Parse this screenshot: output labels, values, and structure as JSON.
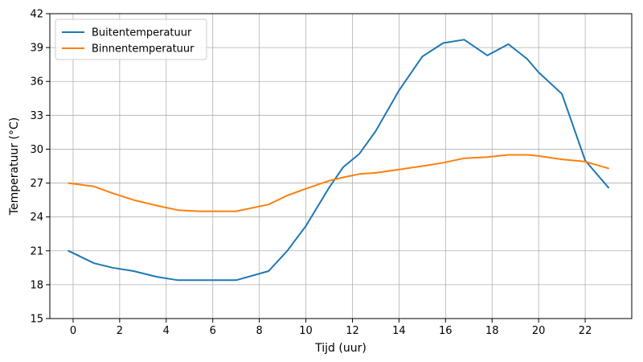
{
  "chart_data": {
    "type": "line",
    "xlabel": "Tijd (uur)",
    "ylabel": "Temperatuur (°C)",
    "xlim": [
      -1,
      24
    ],
    "ylim": [
      15,
      42
    ],
    "xticks": [
      0,
      2,
      4,
      6,
      8,
      10,
      12,
      14,
      16,
      18,
      20,
      22
    ],
    "yticks": [
      15,
      18,
      21,
      24,
      27,
      30,
      33,
      36,
      39,
      42
    ],
    "grid": true,
    "legend_position": "top-left",
    "series": [
      {
        "name": "Buitentemperatuur",
        "color": "#1f77b4",
        "x": [
          -0.2,
          0.9,
          1.7,
          2.6,
          3.6,
          4.5,
          5.4,
          6.3,
          7.0,
          8.4,
          9.2,
          10.0,
          11.0,
          11.6,
          12.3,
          13.0,
          14.0,
          15.0,
          15.9,
          16.8,
          17.8,
          18.7,
          19.5,
          20.0,
          21.0,
          22.0,
          23.0
        ],
        "y": [
          21.0,
          19.9,
          19.5,
          19.2,
          18.7,
          18.4,
          18.4,
          18.4,
          18.4,
          19.2,
          21.0,
          23.2,
          26.6,
          28.4,
          29.6,
          31.6,
          35.2,
          38.2,
          39.4,
          39.7,
          38.3,
          39.3,
          38.0,
          36.8,
          34.9,
          29.0,
          26.6
        ]
      },
      {
        "name": "Binnentemperatuur",
        "color": "#ff7f0e",
        "x": [
          -0.2,
          0.9,
          1.7,
          2.6,
          3.6,
          4.5,
          5.4,
          6.3,
          7.0,
          8.4,
          9.2,
          10.0,
          11.0,
          11.6,
          12.3,
          13.0,
          14.0,
          15.0,
          15.9,
          16.8,
          17.8,
          18.7,
          19.5,
          20.0,
          21.0,
          22.0,
          23.0
        ],
        "y": [
          27.0,
          26.7,
          26.1,
          25.5,
          25.0,
          24.6,
          24.5,
          24.5,
          24.5,
          25.1,
          25.9,
          26.5,
          27.2,
          27.5,
          27.8,
          27.9,
          28.2,
          28.5,
          28.8,
          29.2,
          29.3,
          29.5,
          29.5,
          29.4,
          29.1,
          28.9,
          28.3
        ]
      }
    ]
  }
}
